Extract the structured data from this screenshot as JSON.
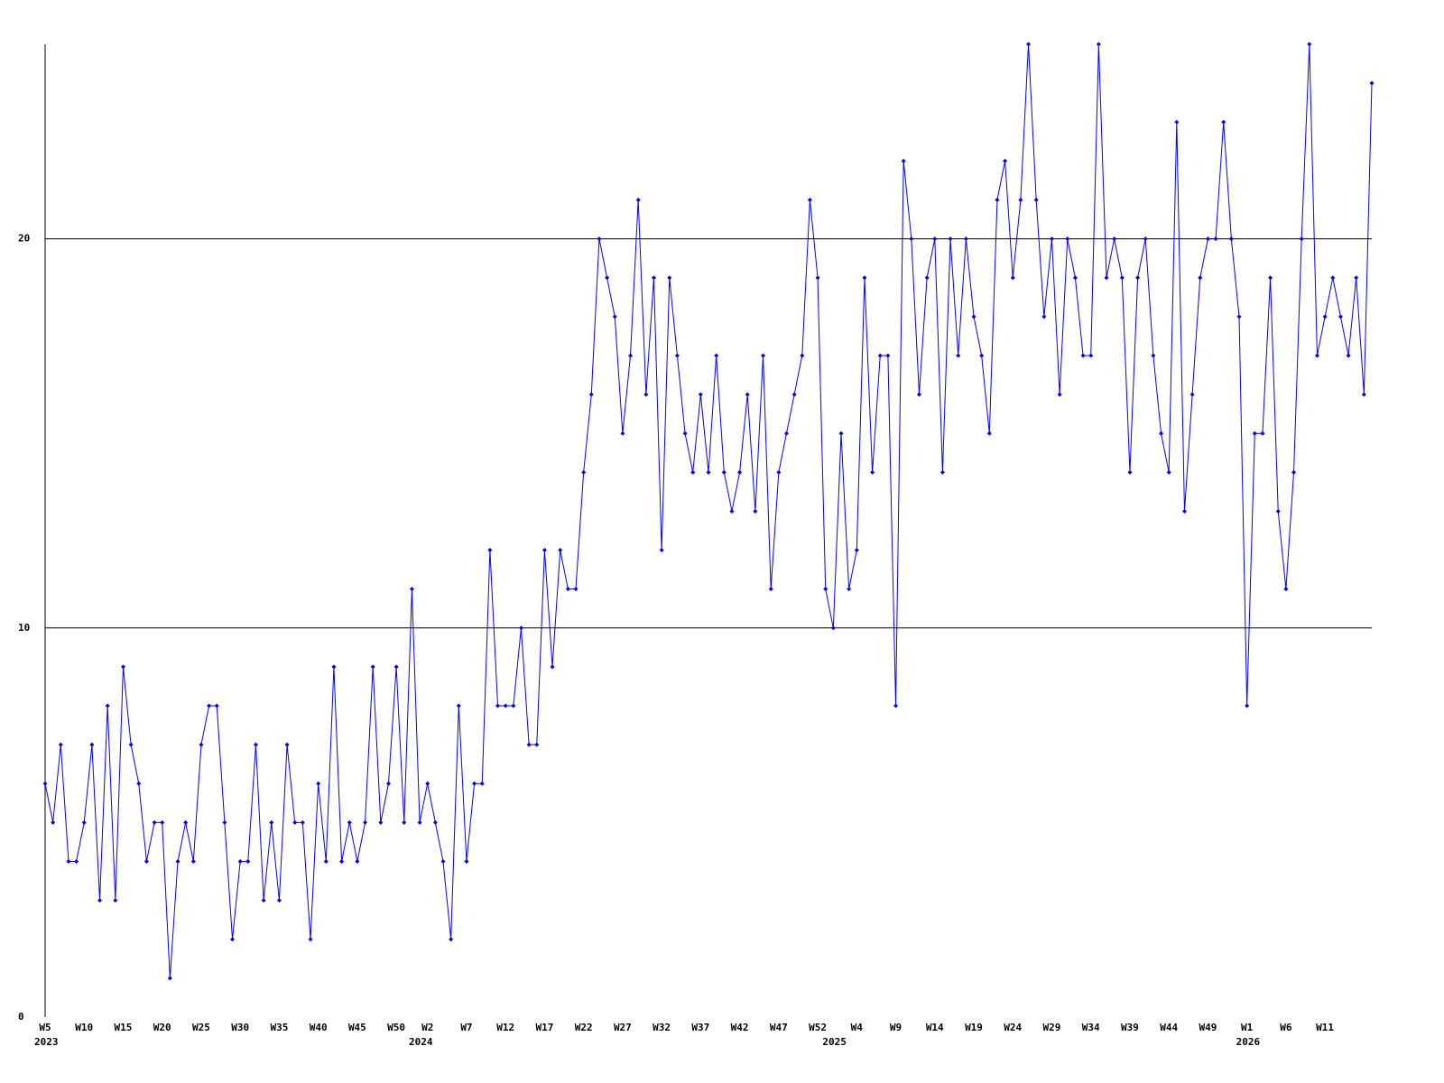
{
  "chart_data": {
    "type": "line",
    "categories": [
      "W5",
      null,
      null,
      null,
      null,
      "W10",
      null,
      null,
      null,
      null,
      "W15",
      null,
      null,
      null,
      null,
      "W20",
      null,
      null,
      null,
      null,
      "W25",
      null,
      null,
      null,
      null,
      "W30",
      null,
      null,
      null,
      null,
      "W35",
      null,
      null,
      null,
      null,
      "W40",
      null,
      null,
      null,
      null,
      "W45",
      null,
      null,
      null,
      null,
      "W50",
      null,
      null,
      null,
      "W2",
      null,
      null,
      null,
      null,
      "W7",
      null,
      null,
      null,
      null,
      "W12",
      null,
      null,
      null,
      null,
      "W17",
      null,
      null,
      null,
      null,
      "W22",
      null,
      null,
      null,
      null,
      "W27",
      null,
      null,
      null,
      null,
      "W32",
      null,
      null,
      null,
      null,
      "W37",
      null,
      null,
      null,
      null,
      "W42",
      null,
      null,
      null,
      null,
      "W47",
      null,
      null,
      null,
      null,
      "W52",
      null,
      null,
      null,
      null,
      "W4",
      null,
      null,
      null,
      null,
      "W9",
      null,
      null,
      null,
      null,
      "W14",
      null,
      null,
      null,
      null,
      "W19",
      null,
      null,
      null,
      null,
      "W24",
      null,
      null,
      null,
      null,
      "W29",
      null,
      null,
      null,
      null,
      "W34",
      null,
      null,
      null,
      null,
      "W39",
      null,
      null,
      null,
      null,
      "W44",
      null,
      null,
      null,
      null,
      "W49",
      null,
      null,
      null,
      null,
      "W1",
      null,
      null,
      null,
      null,
      "W6",
      null,
      null,
      null,
      null,
      "W11",
      null,
      null,
      null,
      null,
      null,
      null
    ],
    "years": [
      "2023",
      null,
      null,
      null,
      null,
      null,
      null,
      null,
      null,
      null,
      null,
      null,
      null,
      null,
      null,
      null,
      null,
      null,
      null,
      null,
      null,
      null,
      null,
      null,
      null,
      null,
      null,
      null,
      null,
      null,
      null,
      null,
      null,
      null,
      null,
      null,
      null,
      null,
      null,
      null,
      null,
      null,
      null,
      null,
      null,
      null,
      null,
      null,
      "2024",
      null,
      null,
      null,
      null,
      null,
      null,
      null,
      null,
      null,
      null,
      null,
      null,
      null,
      null,
      null,
      null,
      null,
      null,
      null,
      null,
      null,
      null,
      null,
      null,
      null,
      null,
      null,
      null,
      null,
      null,
      null,
      null,
      null,
      null,
      null,
      null,
      null,
      null,
      null,
      null,
      null,
      null,
      null,
      null,
      null,
      null,
      null,
      null,
      null,
      null,
      null,
      null,
      "2025",
      null,
      null,
      null,
      null,
      null,
      null,
      null,
      null,
      null,
      null,
      null,
      null,
      null,
      null,
      null,
      null,
      null,
      null,
      null,
      null,
      null,
      null,
      null,
      null,
      null,
      null,
      null,
      null,
      null,
      null,
      null,
      null,
      null,
      null,
      null,
      null,
      null,
      null,
      null,
      null,
      null,
      null,
      null,
      null,
      null,
      null,
      null,
      null,
      null,
      null,
      null,
      null,
      "2026",
      null,
      null,
      null,
      null,
      null,
      null,
      null,
      null,
      null,
      null,
      null,
      null,
      null,
      null,
      null,
      null
    ],
    "series": [
      {
        "color": "#0000ff",
        "values": [
          6,
          5,
          7,
          4,
          4,
          5,
          7,
          3,
          8,
          3,
          9,
          7,
          6,
          4,
          5,
          5,
          1,
          4,
          5,
          4,
          7,
          8,
          8,
          5,
          2,
          4,
          4,
          7,
          3,
          5,
          3,
          7,
          5,
          5,
          2,
          6,
          4,
          9,
          4,
          5,
          4,
          5,
          9,
          5,
          6,
          9,
          5,
          11,
          5,
          6,
          5,
          4,
          2,
          8,
          4,
          6,
          6,
          12,
          8,
          8,
          8,
          10,
          7,
          7,
          12,
          9,
          12,
          11,
          11,
          14,
          16,
          20,
          19,
          18,
          15,
          17,
          21,
          16,
          19,
          12,
          19,
          17,
          15,
          14,
          16,
          14,
          17,
          14,
          13,
          14,
          16,
          13,
          17,
          11,
          14,
          15,
          16,
          17,
          21,
          19,
          11,
          10,
          15,
          11,
          12,
          19,
          14,
          17,
          17,
          8,
          22,
          20,
          16,
          19,
          20,
          14,
          20,
          17,
          20,
          18,
          17,
          15,
          21,
          22,
          19,
          21,
          25,
          21,
          18,
          20,
          16,
          20,
          19,
          17,
          17,
          25,
          19,
          20,
          19,
          14,
          19,
          20,
          17,
          15,
          14,
          23,
          13,
          16,
          19,
          20,
          20,
          23,
          20,
          18,
          8,
          15,
          15,
          19,
          13,
          11,
          14,
          20,
          25,
          17,
          18,
          19,
          18,
          17,
          19,
          16,
          24
        ]
      }
    ],
    "ylim": [
      0,
      25
    ],
    "yticks": [
      0,
      10,
      20
    ],
    "grid": true
  }
}
